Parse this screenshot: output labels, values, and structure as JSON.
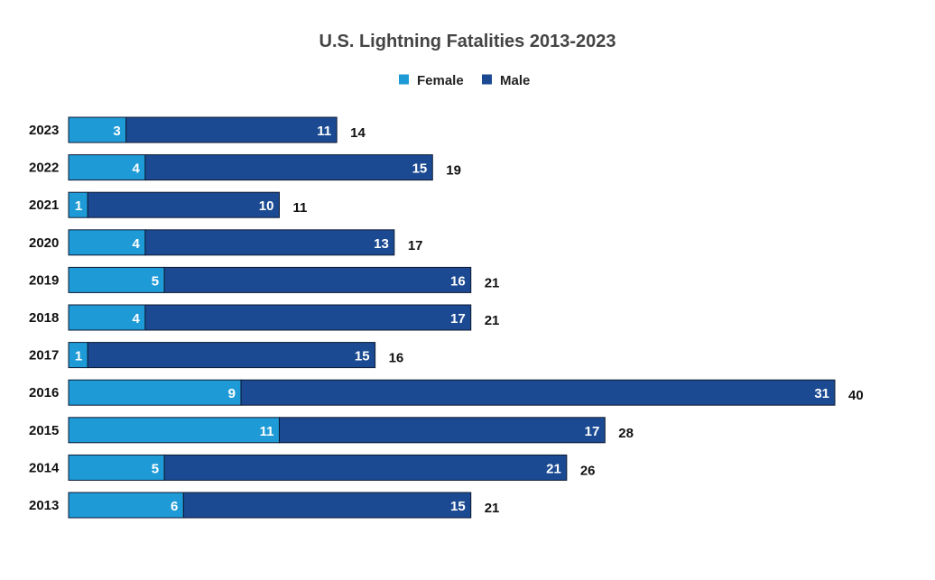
{
  "chart_data": {
    "type": "bar",
    "orientation": "horizontal",
    "stacked": true,
    "title": "U.S. Lightning Fatalities 2013-2023",
    "categories": [
      "2023",
      "2022",
      "2021",
      "2020",
      "2019",
      "2018",
      "2017",
      "2016",
      "2015",
      "2014",
      "2013"
    ],
    "series": [
      {
        "name": "Female",
        "color": "#1e9bd7",
        "values": [
          3,
          4,
          1,
          4,
          5,
          4,
          1,
          9,
          11,
          5,
          6
        ]
      },
      {
        "name": "Male",
        "color": "#1b4a92",
        "values": [
          11,
          15,
          10,
          13,
          16,
          17,
          15,
          31,
          17,
          21,
          15
        ]
      }
    ],
    "totals": [
      14,
      19,
      11,
      17,
      21,
      21,
      16,
      40,
      28,
      26,
      21
    ],
    "xlim": [
      0,
      40
    ],
    "xlabel": "",
    "ylabel": "",
    "grid": false,
    "legend": "top-center"
  }
}
